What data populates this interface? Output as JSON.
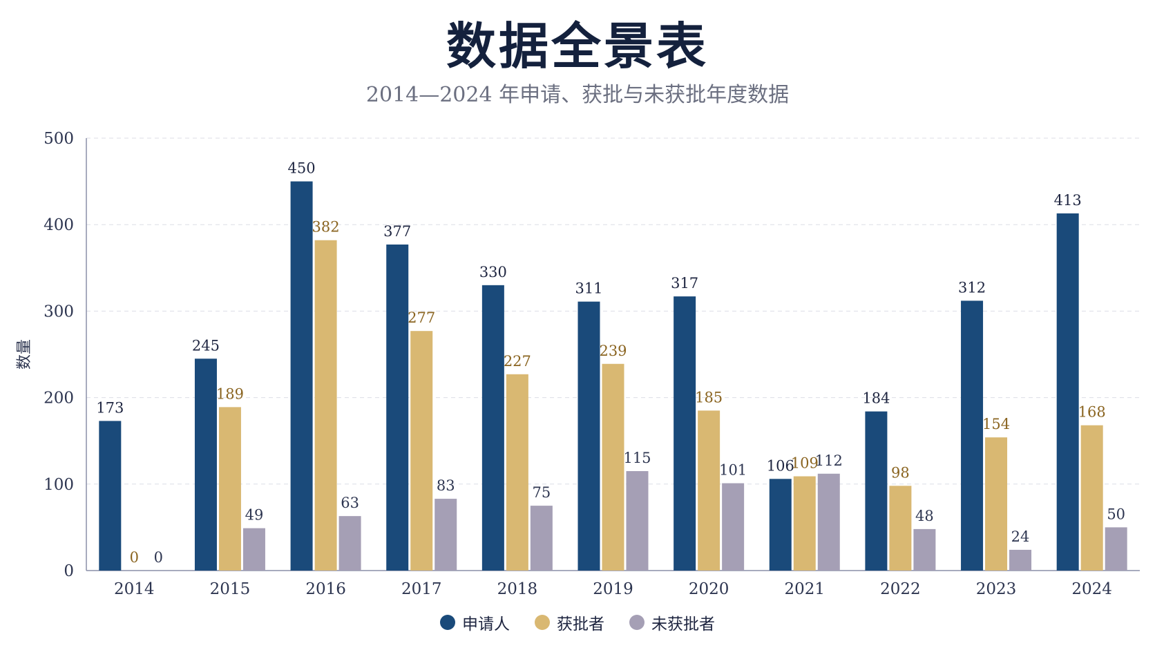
{
  "chart_data": {
    "type": "bar",
    "title": "数据全景表",
    "subtitle": "2014—2024 年申请、获批与未获批年度数据",
    "xlabel": "",
    "ylabel": "数量",
    "ylim": [
      0,
      500
    ],
    "yticks": [
      0,
      100,
      200,
      300,
      400,
      500
    ],
    "grid": true,
    "legend_position": "bottom",
    "categories": [
      "2014",
      "2015",
      "2016",
      "2017",
      "2018",
      "2019",
      "2020",
      "2021",
      "2022",
      "2023",
      "2024"
    ],
    "series": [
      {
        "name": "申请人",
        "color": "#1a4a7a",
        "label_color": "#1e2540",
        "values": [
          173,
          245,
          450,
          377,
          330,
          311,
          317,
          106,
          184,
          312,
          413
        ]
      },
      {
        "name": "获批者",
        "color": "#d9b872",
        "label_color": "#8a6420",
        "values": [
          0,
          189,
          382,
          277,
          227,
          239,
          185,
          109,
          98,
          154,
          168
        ]
      },
      {
        "name": "未获批者",
        "color": "#a59fb5",
        "label_color": "#2d3550",
        "values": [
          0,
          49,
          63,
          83,
          75,
          115,
          101,
          112,
          48,
          24,
          50
        ]
      }
    ]
  }
}
